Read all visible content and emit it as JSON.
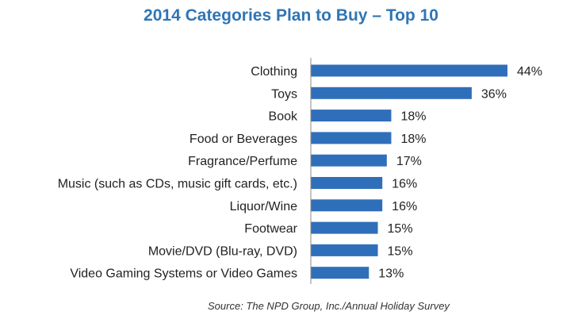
{
  "chart_data": {
    "type": "bar",
    "orientation": "horizontal",
    "title": "2014 Categories Plan to Buy – Top 10",
    "source": "Source: The NPD Group, Inc./Annual Holiday Survey",
    "categories": [
      "Clothing",
      "Toys",
      "Book",
      "Food or Beverages",
      "Fragrance/Perfume",
      "Music (such as CDs, music gift cards, etc.)",
      "Liquor/Wine",
      "Footwear",
      "Movie/DVD (Blu-ray, DVD)",
      "Video Gaming Systems or Video Games"
    ],
    "values": [
      44,
      36,
      18,
      18,
      17,
      16,
      16,
      15,
      15,
      13
    ],
    "value_labels": [
      "44%",
      "36%",
      "18%",
      "18%",
      "17%",
      "16%",
      "16%",
      "15%",
      "15%",
      "13%"
    ],
    "xlim": [
      0,
      44
    ],
    "grid": false,
    "legend": "none",
    "bar_color": "#2f6fba",
    "title_color": "#2f75b5"
  }
}
